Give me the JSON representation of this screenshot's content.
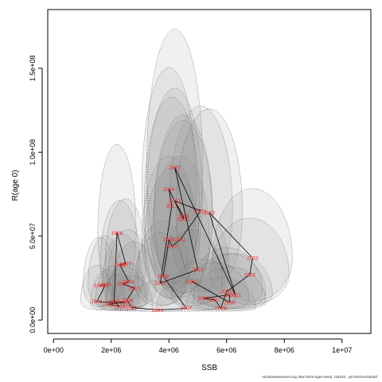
{
  "chart_data": {
    "type": "scatter",
    "title": "",
    "xlabel": "SSB",
    "ylabel": "R(age 0)",
    "xlim": [
      -200000,
      11000000
    ],
    "ylim": [
      -8000000,
      185000000
    ],
    "x_ticks": [
      0,
      2000000,
      4000000,
      6000000,
      8000000,
      10000000
    ],
    "x_tick_labels": [
      "0e+00",
      "2e+06",
      "4e+06",
      "6e+06",
      "8e+06",
      "1e+07"
    ],
    "y_ticks": [
      0,
      50000000,
      100000000,
      150000000
    ],
    "y_tick_labels": [
      "0.0e+00",
      "5.0e+07",
      "1.0e+08",
      "1.5e+08"
    ],
    "grid": false,
    "uncertainty_ellipses": true,
    "colors": {
      "trajectory": "#000000",
      "year_label": "#ff2020",
      "ellipse_fill": "#888888",
      "ellipse_stroke": "#555555"
    },
    "series": [
      {
        "points": [
          {
            "year": "1991",
            "x": 1500000,
            "y": 11000000
          },
          {
            "year": "1993",
            "x": 1900000,
            "y": 9500000
          },
          {
            "year": "1988",
            "x": 1600000,
            "y": 20500000
          },
          {
            "year": "1989",
            "x": 1800000,
            "y": 21000000
          },
          {
            "year": "1995",
            "x": 2100000,
            "y": 11000000
          },
          {
            "year": "1996",
            "x": 2200000,
            "y": 52000000
          },
          {
            "year": "1998",
            "x": 2300000,
            "y": 33000000
          },
          {
            "year": "1997",
            "x": 2500000,
            "y": 33500000
          },
          {
            "year": "1999",
            "x": 2600000,
            "y": 23000000
          },
          {
            "year": "2000",
            "x": 2400000,
            "y": 21500000
          },
          {
            "year": "2001",
            "x": 2800000,
            "y": 19000000
          },
          {
            "year": "1994",
            "x": 2300000,
            "y": 8000000
          },
          {
            "year": "1992",
            "x": 2500000,
            "y": 10500000
          },
          {
            "year": "2004",
            "x": 2550000,
            "y": 12000000
          },
          {
            "year": "2005",
            "x": 2700000,
            "y": 7500000
          },
          {
            "year": "2006",
            "x": 3600000,
            "y": 6000000
          },
          {
            "year": "2007",
            "x": 4600000,
            "y": 7000000
          },
          {
            "year": "2008",
            "x": 3800000,
            "y": 26000000
          },
          {
            "year": "2009",
            "x": 4000000,
            "y": 48000000
          },
          {
            "year": "2010",
            "x": 4100000,
            "y": 44000000
          },
          {
            "year": "2011",
            "x": 4400000,
            "y": 48000000
          },
          {
            "year": "2012",
            "x": 5100000,
            "y": 65000000
          },
          {
            "year": "2013",
            "x": 4200000,
            "y": 71000000
          },
          {
            "year": "2014",
            "x": 4500000,
            "y": 62000000
          },
          {
            "year": "2015",
            "x": 4500000,
            "y": 60000000
          },
          {
            "year": "2016",
            "x": 4000000,
            "y": 78000000
          },
          {
            "year": "2017",
            "x": 4100000,
            "y": 68000000
          },
          {
            "year": "2018",
            "x": 3700000,
            "y": 22000000
          },
          {
            "year": "2019",
            "x": 5000000,
            "y": 30000000
          },
          {
            "year": "2020",
            "x": 4200000,
            "y": 91000000
          },
          {
            "year": "2021",
            "x": 6300000,
            "y": 15000000
          },
          {
            "year": "2022",
            "x": 5400000,
            "y": 64000000
          },
          {
            "year": "2023",
            "x": 6900000,
            "y": 37000000
          },
          {
            "year": "2024",
            "x": 6800000,
            "y": 27000000
          },
          {
            "year": "2025",
            "x": 6000000,
            "y": 17000000
          },
          {
            "year": "2026",
            "x": 5800000,
            "y": 7000000
          },
          {
            "year": "2027",
            "x": 5600000,
            "y": 12000000
          },
          {
            "year": "2028",
            "x": 5200000,
            "y": 13000000
          },
          {
            "year": "2029",
            "x": 6100000,
            "y": 15000000
          },
          {
            "year": "2030",
            "x": 6100000,
            "y": 10500000
          },
          {
            "year": "2032",
            "x": 4800000,
            "y": 23000000
          }
        ]
      }
    ]
  },
  "footer": "stockassessment.org, BW-2023-sgeo-test2, r18334 , git:c9c81ec53a0d"
}
